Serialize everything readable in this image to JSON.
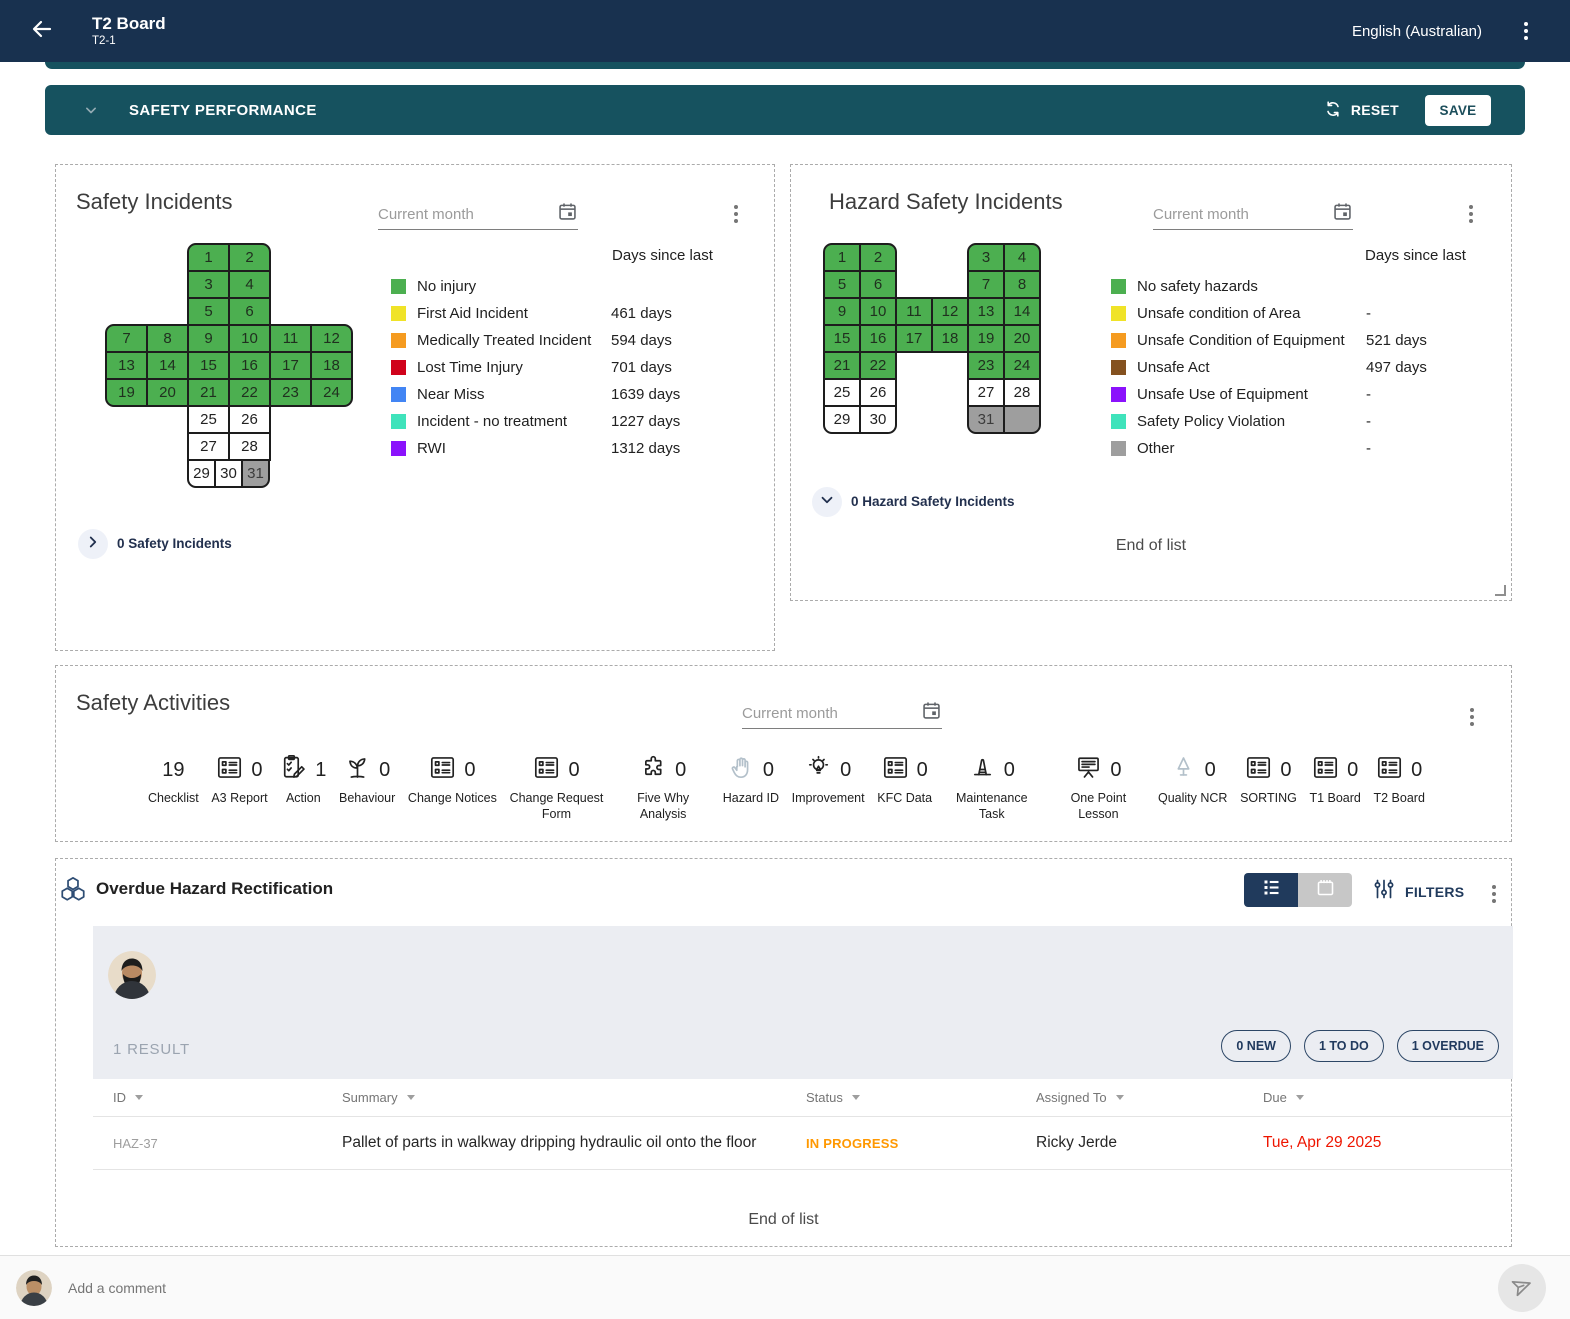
{
  "app_bar": {
    "title": "T2 Board",
    "subtitle": "T2-1",
    "language": "English (Australian)"
  },
  "section_bar": {
    "title": "SAFETY PERFORMANCE",
    "reset_label": "RESET",
    "save_label": "SAVE"
  },
  "safety_incidents": {
    "title": "Safety Incidents",
    "period": "Current month",
    "days_since_last_label": "Days since last",
    "footer_label": "0 Safety Incidents",
    "calendar": {
      "shape": "cross",
      "rows": [
        {
          "pad": 2,
          "cells": [
            {
              "d": "1",
              "s": "g",
              "r": "tl"
            },
            {
              "d": "2",
              "s": "g",
              "r": "tr"
            }
          ]
        },
        {
          "pad": 2,
          "cells": [
            {
              "d": "3",
              "s": "g"
            },
            {
              "d": "4",
              "s": "g"
            }
          ]
        },
        {
          "pad": 2,
          "cells": [
            {
              "d": "5",
              "s": "g"
            },
            {
              "d": "6",
              "s": "g"
            }
          ]
        },
        {
          "cells": [
            {
              "d": "7",
              "s": "g",
              "r": "tl"
            },
            {
              "d": "8",
              "s": "g"
            },
            {
              "d": "9",
              "s": "g"
            },
            {
              "d": "10",
              "s": "g"
            },
            {
              "d": "11",
              "s": "g"
            },
            {
              "d": "12",
              "s": "g",
              "r": "tr"
            }
          ]
        },
        {
          "cells": [
            {
              "d": "13",
              "s": "g"
            },
            {
              "d": "14",
              "s": "g"
            },
            {
              "d": "15",
              "s": "g"
            },
            {
              "d": "16",
              "s": "g"
            },
            {
              "d": "17",
              "s": "g"
            },
            {
              "d": "18",
              "s": "g"
            }
          ]
        },
        {
          "cells": [
            {
              "d": "19",
              "s": "g",
              "r": "bl"
            },
            {
              "d": "20",
              "s": "g"
            },
            {
              "d": "21",
              "s": "g"
            },
            {
              "d": "22",
              "s": "g"
            },
            {
              "d": "23",
              "s": "g"
            },
            {
              "d": "24",
              "s": "g",
              "r": "br"
            }
          ]
        },
        {
          "pad": 2,
          "cells": [
            {
              "d": "25",
              "s": "w"
            },
            {
              "d": "26",
              "s": "w"
            }
          ]
        },
        {
          "pad": 2,
          "cells": [
            {
              "d": "27",
              "s": "w"
            },
            {
              "d": "28",
              "s": "w"
            }
          ]
        },
        {
          "pad": 2,
          "cells": [
            {
              "d": "29",
              "s": "w",
              "sm": 1,
              "r": "bl"
            },
            {
              "d": "30",
              "s": "w",
              "sm": 1
            },
            {
              "d": "31",
              "s": "x",
              "sm": 1,
              "r": "br"
            }
          ]
        }
      ]
    },
    "legend": [
      {
        "label": "No injury",
        "color": "#4caf50",
        "value": ""
      },
      {
        "label": "First Aid Incident",
        "color": "#f0e328",
        "value": "461 days"
      },
      {
        "label": "Medically Treated Incident",
        "color": "#f59b20",
        "value": "594 days"
      },
      {
        "label": "Lost Time Injury",
        "color": "#d0021b",
        "value": "701 days"
      },
      {
        "label": "Near Miss",
        "color": "#4285f4",
        "value": "1639 days"
      },
      {
        "label": "Incident - no treatment",
        "color": "#3fe3bb",
        "value": "1227 days"
      },
      {
        "label": "RWI",
        "color": "#8b12fc",
        "value": "1312 days"
      }
    ]
  },
  "hazard_incidents": {
    "title": "Hazard Safety Incidents",
    "period": "Current month",
    "days_since_last_label": "Days since last",
    "footer_label": "0 Hazard Safety Incidents",
    "end_of_list": "End of list",
    "calendar": {
      "shape": "h",
      "rows": [
        {
          "cells": [
            {
              "d": "1",
              "s": "g",
              "r": "tl"
            },
            {
              "d": "2",
              "s": "g",
              "r": "tr"
            },
            {
              "gap": 2
            },
            {
              "d": "3",
              "s": "g",
              "r": "tl"
            },
            {
              "d": "4",
              "s": "g",
              "r": "tr"
            }
          ]
        },
        {
          "cells": [
            {
              "d": "5",
              "s": "g"
            },
            {
              "d": "6",
              "s": "g"
            },
            {
              "gap": 2
            },
            {
              "d": "7",
              "s": "g"
            },
            {
              "d": "8",
              "s": "g"
            }
          ]
        },
        {
          "cells": [
            {
              "d": "9",
              "s": "g"
            },
            {
              "d": "10",
              "s": "g"
            },
            {
              "d": "11",
              "s": "g"
            },
            {
              "d": "12",
              "s": "g"
            },
            {
              "d": "13",
              "s": "g"
            },
            {
              "d": "14",
              "s": "g"
            }
          ]
        },
        {
          "cells": [
            {
              "d": "15",
              "s": "g"
            },
            {
              "d": "16",
              "s": "g"
            },
            {
              "d": "17",
              "s": "g"
            },
            {
              "d": "18",
              "s": "g"
            },
            {
              "d": "19",
              "s": "g"
            },
            {
              "d": "20",
              "s": "g"
            }
          ]
        },
        {
          "cells": [
            {
              "d": "21",
              "s": "g"
            },
            {
              "d": "22",
              "s": "g"
            },
            {
              "gap": 2
            },
            {
              "d": "23",
              "s": "g"
            },
            {
              "d": "24",
              "s": "g"
            }
          ]
        },
        {
          "cells": [
            {
              "d": "25",
              "s": "w"
            },
            {
              "d": "26",
              "s": "w"
            },
            {
              "gap": 2
            },
            {
              "d": "27",
              "s": "w"
            },
            {
              "d": "28",
              "s": "w"
            }
          ]
        },
        {
          "cells": [
            {
              "d": "29",
              "s": "w",
              "r": "bl"
            },
            {
              "d": "30",
              "s": "w",
              "r": "br"
            },
            {
              "gap": 2
            },
            {
              "d": "31",
              "s": "x",
              "r": "bl"
            },
            {
              "d": "",
              "s": "x",
              "r": "br"
            }
          ]
        }
      ]
    },
    "legend": [
      {
        "label": "No safety hazards",
        "color": "#4caf50",
        "value": ""
      },
      {
        "label": "Unsafe condition of Area",
        "color": "#f0e328",
        "value": "-"
      },
      {
        "label": "Unsafe Condition of Equipment",
        "color": "#f59b20",
        "value": "521 days"
      },
      {
        "label": "Unsafe Act",
        "color": "#84511f",
        "value": "497 days"
      },
      {
        "label": "Unsafe Use of Equipment",
        "color": "#8b12fc",
        "value": "-"
      },
      {
        "label": "Safety Policy Violation",
        "color": "#3fe3bb",
        "value": "-"
      },
      {
        "label": "Other",
        "color": "#9e9e9e",
        "value": "-"
      }
    ]
  },
  "safety_activities": {
    "title": "Safety Activities",
    "period": "Current month",
    "items": [
      {
        "label": "Checklist",
        "count": "19",
        "icon": "none"
      },
      {
        "label": "A3 Report",
        "count": "0",
        "icon": "form"
      },
      {
        "label": "Action",
        "count": "1",
        "icon": "action"
      },
      {
        "label": "Behaviour",
        "count": "0",
        "icon": "behaviour"
      },
      {
        "label": "Change Notices",
        "count": "0",
        "icon": "form"
      },
      {
        "label": "Change Request Form",
        "count": "0",
        "icon": "form"
      },
      {
        "label": "Five Why Analysis",
        "count": "0",
        "icon": "puzzle"
      },
      {
        "label": "Hazard ID",
        "count": "0",
        "icon": "hand",
        "muted": true
      },
      {
        "label": "Improvement",
        "count": "0",
        "icon": "bulb"
      },
      {
        "label": "KFC Data",
        "count": "0",
        "icon": "form"
      },
      {
        "label": "Maintenance Task",
        "count": "0",
        "icon": "cone"
      },
      {
        "label": "One Point Lesson",
        "count": "0",
        "icon": "board"
      },
      {
        "label": "Quality NCR",
        "count": "0",
        "icon": "tree",
        "muted": true
      },
      {
        "label": "SORTING",
        "count": "0",
        "icon": "form"
      },
      {
        "label": "T1 Board",
        "count": "0",
        "icon": "form"
      },
      {
        "label": "T2 Board",
        "count": "0",
        "icon": "form"
      }
    ]
  },
  "overdue_section": {
    "title": "Overdue Hazard Rectification",
    "filters_label": "FILTERS",
    "result_count": "1 RESULT",
    "chips": [
      {
        "label": "0 NEW"
      },
      {
        "label": "1 TO DO"
      },
      {
        "label": "1 OVERDUE"
      }
    ],
    "columns": [
      "ID",
      "Summary",
      "Status",
      "Assigned To",
      "Due"
    ],
    "rows": [
      {
        "id": "HAZ-37",
        "summary": "Pallet of parts in walkway dripping hydraulic oil onto the floor",
        "status": "IN PROGRESS",
        "assigned_to": "Ricky Jerde",
        "due": "Tue, Apr 29 2025"
      }
    ],
    "end_of_list": "End of list"
  },
  "comment_bar": {
    "placeholder": "Add a comment"
  },
  "colors": {
    "app_bar": "#18314f",
    "section_teal": "#16525f",
    "accent_navy": "#203a5c",
    "cell_green": "#4caf50",
    "cell_gray": "#9e9e9e",
    "status_in_progress": "#ff9800",
    "due_overdue": "#ee1500"
  }
}
